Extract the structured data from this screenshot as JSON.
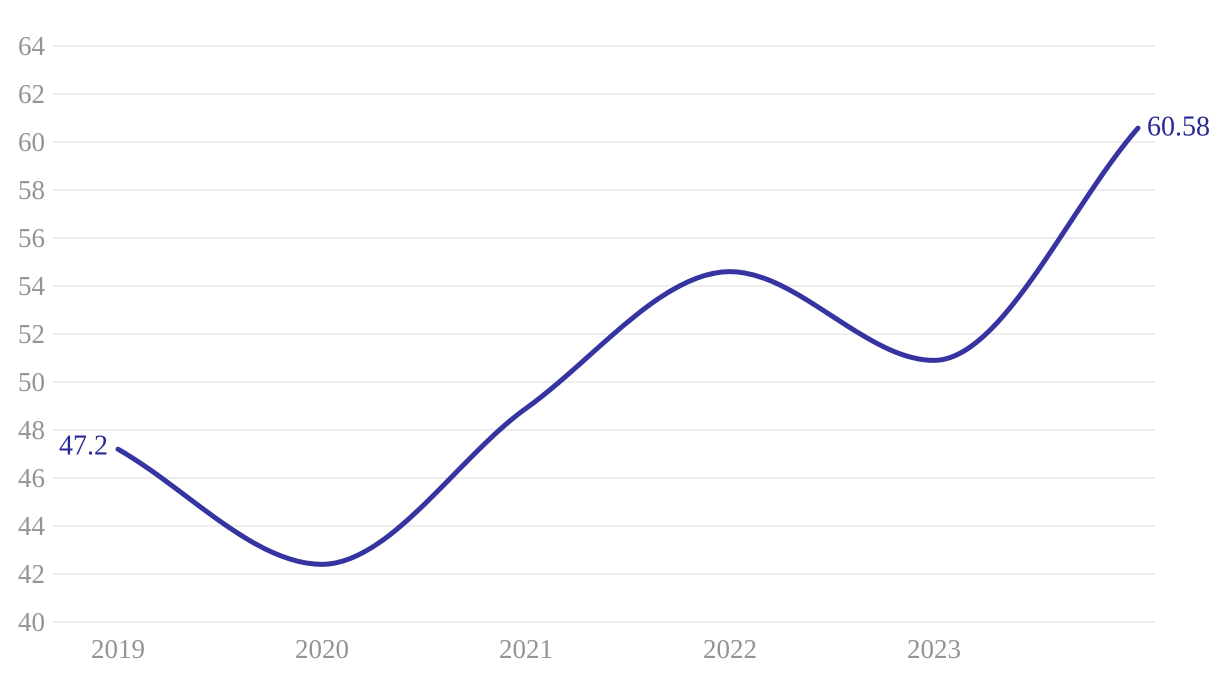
{
  "chart_data": {
    "type": "line",
    "title": "",
    "xlabel": "",
    "ylabel": "",
    "x_tick_labels": [
      "2019",
      "2020",
      "2021",
      "2022",
      "2023"
    ],
    "x_years": [
      2019,
      2020,
      2021,
      2022,
      2023,
      2024
    ],
    "series": [
      {
        "name": "value",
        "values": [
          47.2,
          42.4,
          48.9,
          54.6,
          50.9,
          60.58
        ]
      }
    ],
    "first_point_label": "47.2",
    "last_point_label": "60.58",
    "y_ticks": [
      64,
      62,
      60,
      58,
      56,
      54,
      52,
      50,
      48,
      46,
      44,
      42,
      40
    ],
    "ylim": [
      40,
      64
    ],
    "grid": "horizontal-only",
    "legend_position": "none",
    "line_style": "smooth-curve",
    "colors": {
      "line": "#3534a0",
      "value_label": "#2a2a97",
      "axis_label": "#949494",
      "gridline": "#e8e8e8",
      "background": "#ffffff"
    }
  }
}
